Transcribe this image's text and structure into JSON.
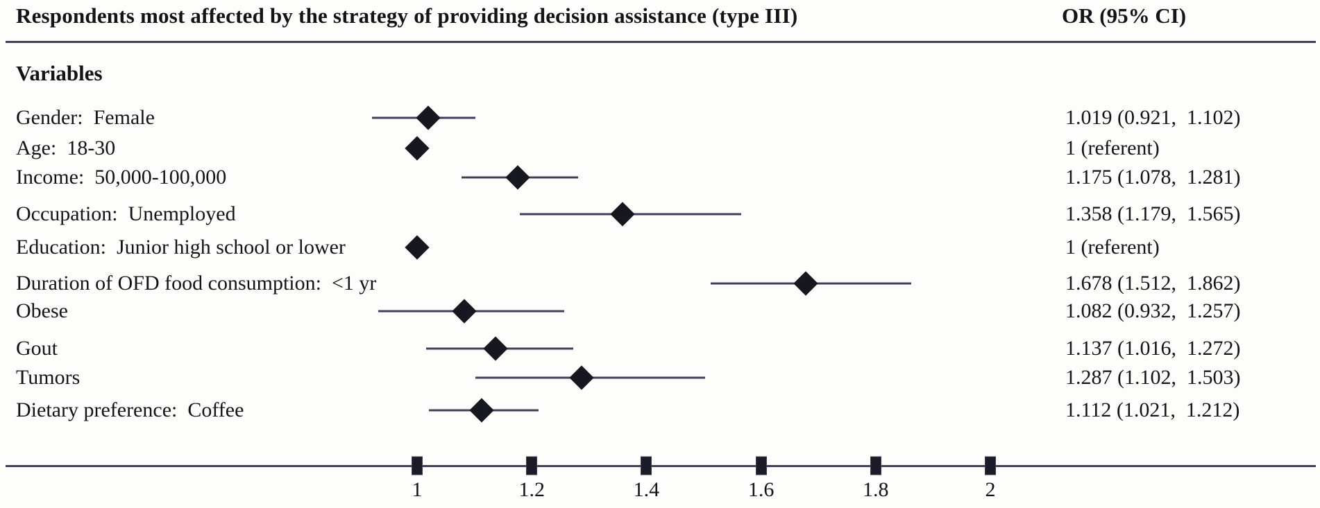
{
  "header": {
    "title": "Respondents most affected by the strategy of providing decision assistance (type III)",
    "or_column_header": "OR (95% CI)"
  },
  "variables_heading": "Variables",
  "colors": {
    "line": "#3f3f58",
    "marker": "#17171f",
    "text": "#141418",
    "background": "#fdfdfb"
  },
  "chart_data": {
    "type": "forest",
    "title": "Respondents most affected by the strategy of providing decision assistance (type III)",
    "value_column_header": "OR (95% CI)",
    "x_axis": {
      "ticks": [
        1,
        1.2,
        1.4,
        1.6,
        1.8,
        2
      ],
      "tick_labels": [
        "1",
        "1.2",
        "1.4",
        "1.6",
        "1.8",
        "2"
      ],
      "grid": false
    },
    "legend": null,
    "rows": [
      {
        "label": "Gender:  Female",
        "or": 1.019,
        "ci_low": 0.921,
        "ci_high": 1.102,
        "referent": false,
        "or_text": "1.019 (0.921,  1.102)"
      },
      {
        "label": "Age:  18-30",
        "or": 1.0,
        "ci_low": null,
        "ci_high": null,
        "referent": true,
        "or_text": "1 (referent)"
      },
      {
        "label": "Income:  50,000-100,000",
        "or": 1.175,
        "ci_low": 1.078,
        "ci_high": 1.281,
        "referent": false,
        "or_text": "1.175 (1.078,  1.281)"
      },
      {
        "label": "Occupation:  Unemployed",
        "or": 1.358,
        "ci_low": 1.179,
        "ci_high": 1.565,
        "referent": false,
        "or_text": "1.358 (1.179,  1.565)"
      },
      {
        "label": "Education:  Junior high school or lower",
        "or": 1.0,
        "ci_low": null,
        "ci_high": null,
        "referent": true,
        "or_text": "1 (referent)"
      },
      {
        "label": "Duration of OFD food consumption:  <1 yr",
        "or": 1.678,
        "ci_low": 1.512,
        "ci_high": 1.862,
        "referent": false,
        "or_text": "1.678 (1.512,  1.862)"
      },
      {
        "label": "Obese",
        "or": 1.082,
        "ci_low": 0.932,
        "ci_high": 1.257,
        "referent": false,
        "or_text": "1.082 (0.932,  1.257)"
      },
      {
        "label": "Gout",
        "or": 1.137,
        "ci_low": 1.016,
        "ci_high": 1.272,
        "referent": false,
        "or_text": "1.137 (1.016,  1.272)"
      },
      {
        "label": "Tumors",
        "or": 1.287,
        "ci_low": 1.102,
        "ci_high": 1.503,
        "referent": false,
        "or_text": "1.287 (1.102,  1.503)"
      },
      {
        "label": "Dietary preference:  Coffee",
        "or": 1.112,
        "ci_low": 1.021,
        "ci_high": 1.212,
        "referent": false,
        "or_text": "1.112 (1.021,  1.212)"
      }
    ]
  }
}
